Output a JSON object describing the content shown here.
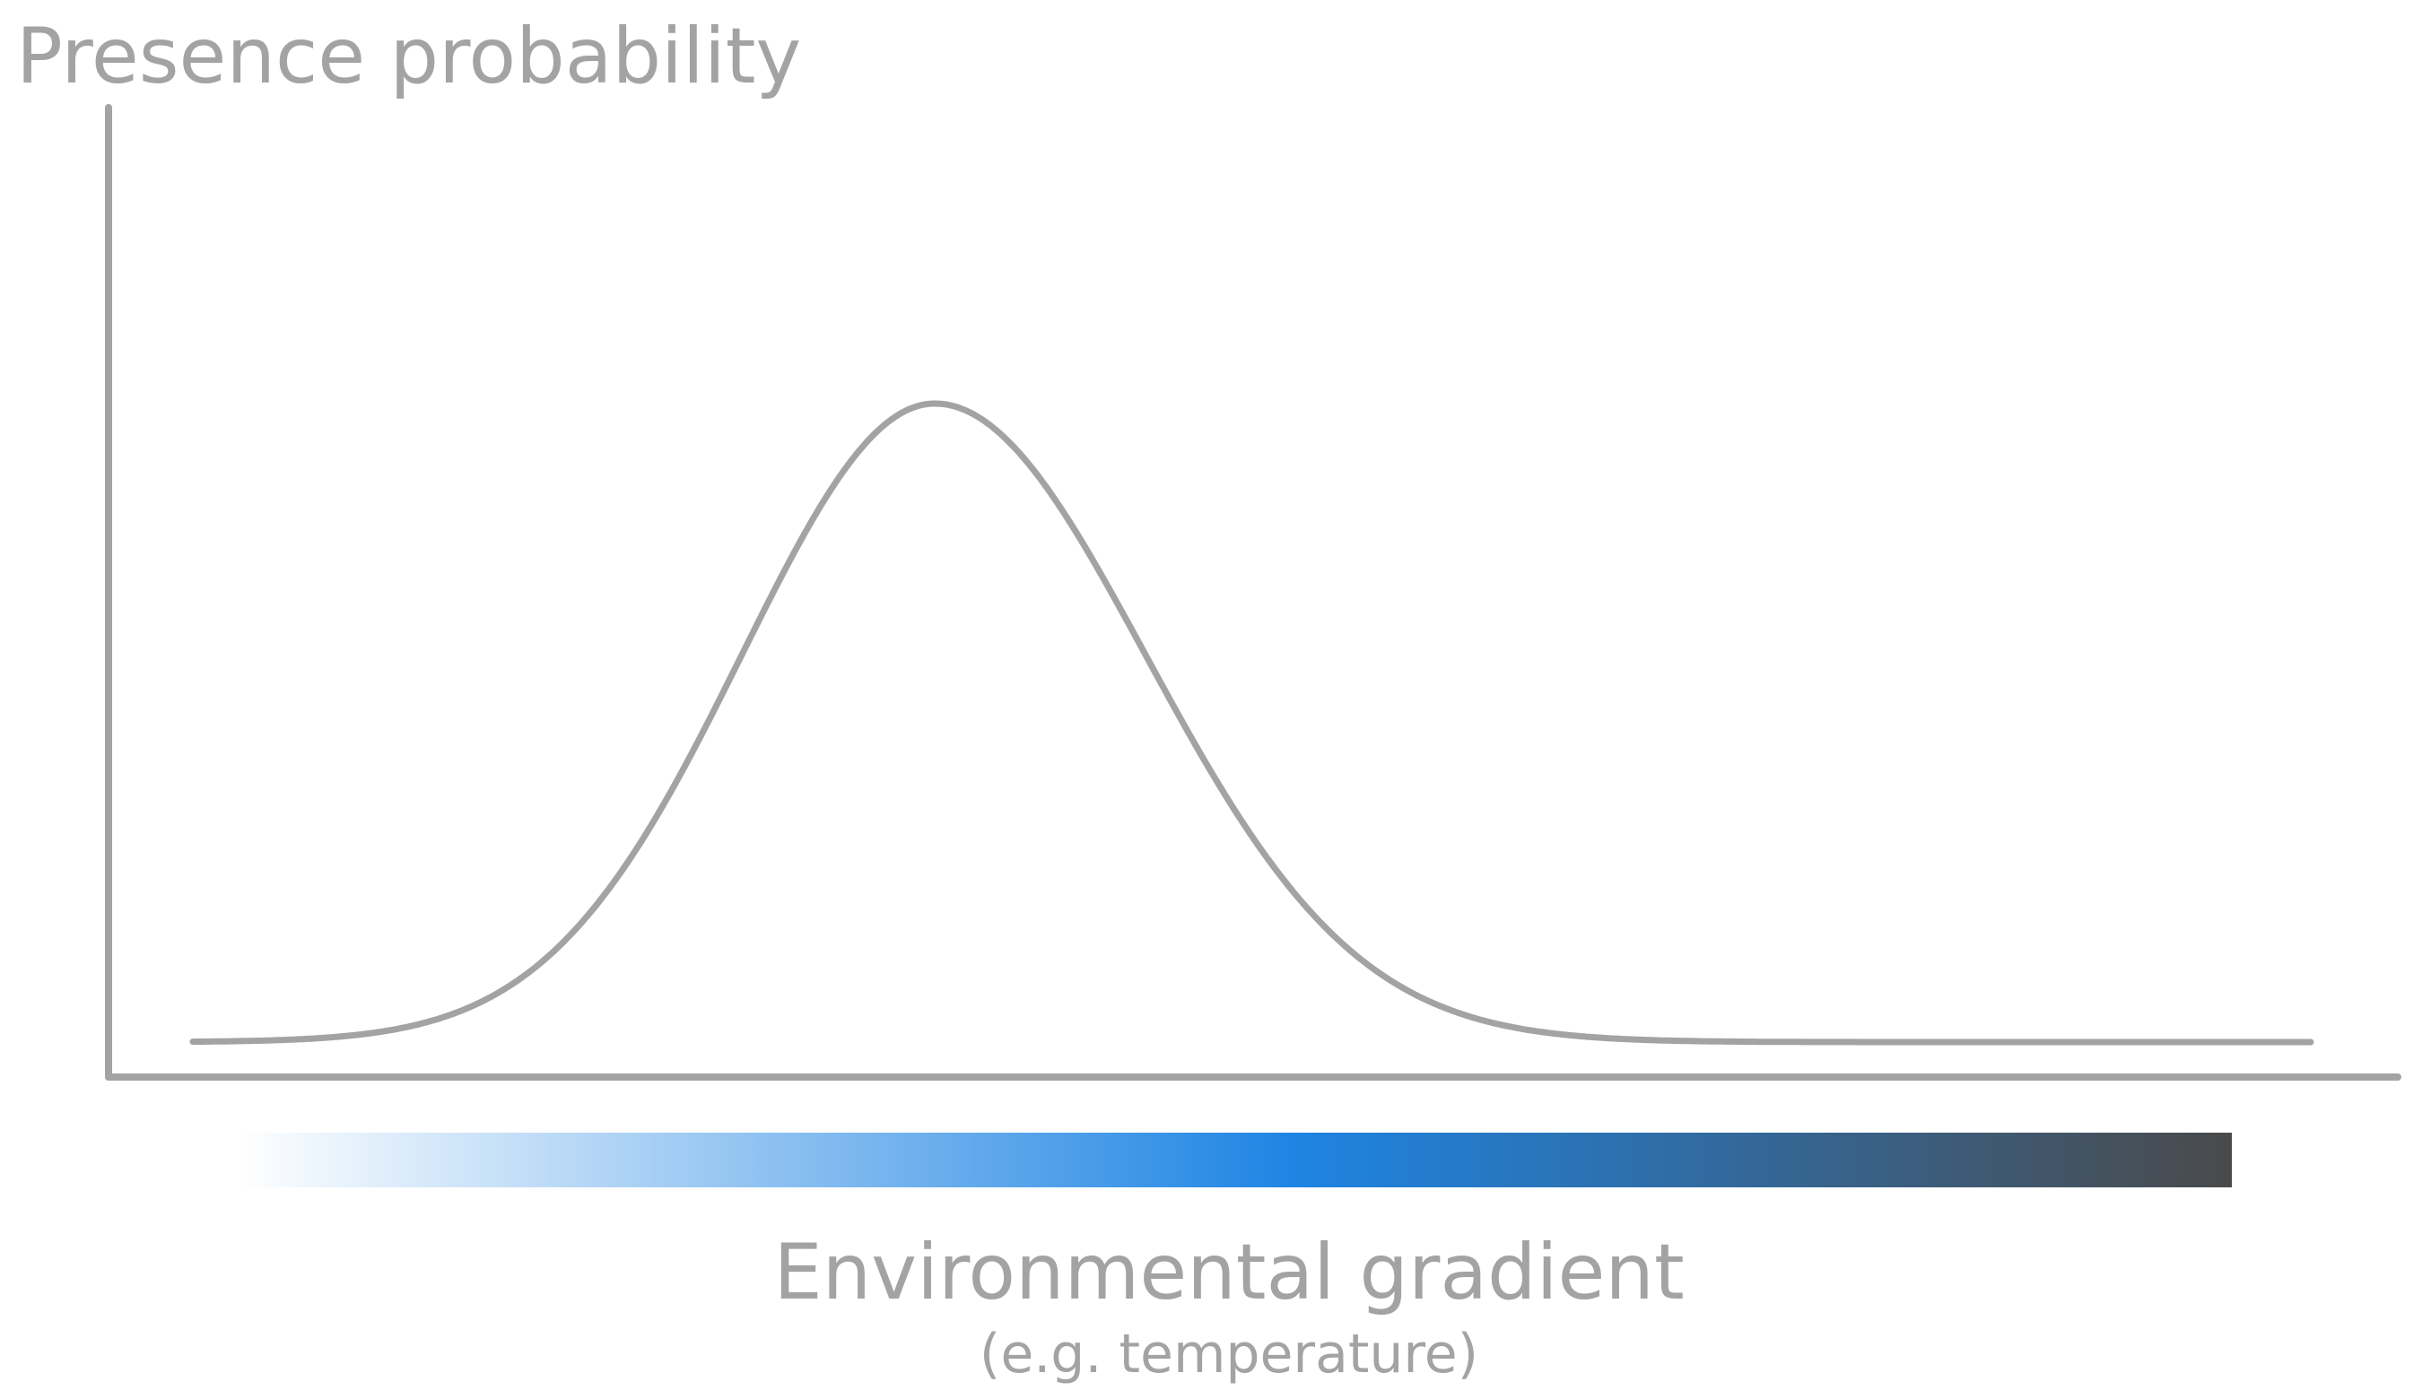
{
  "y_axis_label": "Presence probability",
  "x_axis_label": "Environmental gradient",
  "x_axis_sublabel": "(e.g. temperature)",
  "colors": {
    "axis": "#a3a3a3",
    "curve": "#a3a3a3",
    "text": "#a3a3a3",
    "gradient_start": "#ffffff",
    "gradient_middle": "#1e84e3",
    "gradient_end": "#4a4a4a"
  }
}
